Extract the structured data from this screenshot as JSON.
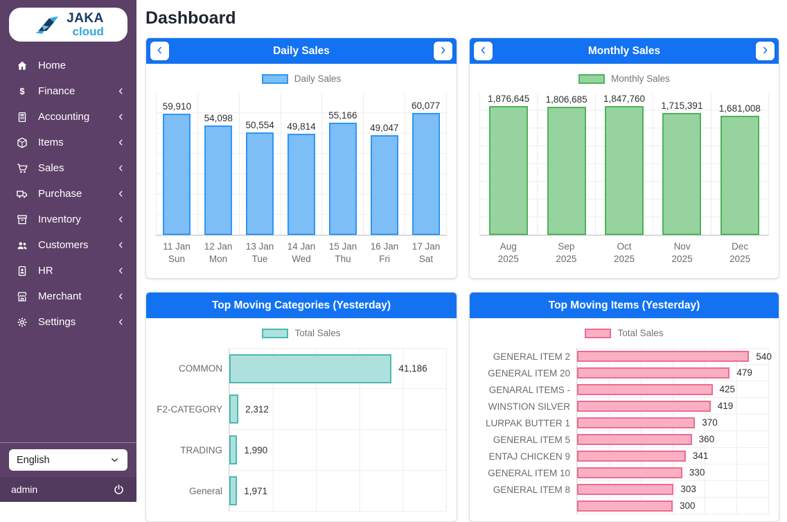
{
  "brand": {
    "top": "JAKA",
    "bottom": "cloud"
  },
  "page_title": "Dashboard",
  "colors": {
    "accent_blue": "#1272f2",
    "sidebar_purple": "#5c4067",
    "sidebar_footer": "#523a5f"
  },
  "sidebar": {
    "items": [
      {
        "label": "Home",
        "icon": "home-icon",
        "chevron": false
      },
      {
        "label": "Finance",
        "icon": "dollar-icon",
        "chevron": true
      },
      {
        "label": "Accounting",
        "icon": "calculator-icon",
        "chevron": true
      },
      {
        "label": "Items",
        "icon": "cube-icon",
        "chevron": true
      },
      {
        "label": "Sales",
        "icon": "cart-icon",
        "chevron": true
      },
      {
        "label": "Purchase",
        "icon": "truck-icon",
        "chevron": true
      },
      {
        "label": "Inventory",
        "icon": "archive-icon",
        "chevron": true
      },
      {
        "label": "Customers",
        "icon": "users-icon",
        "chevron": true
      },
      {
        "label": "HR",
        "icon": "id-card-icon",
        "chevron": true
      },
      {
        "label": "Merchant",
        "icon": "store-icon",
        "chevron": true
      },
      {
        "label": "Settings",
        "icon": "gear-icon",
        "chevron": true
      }
    ],
    "language": "English",
    "user": "admin"
  },
  "chart_data": [
    {
      "id": "daily-sales",
      "type": "bar",
      "title": "Daily Sales",
      "legend": "Daily Sales",
      "has_nav_arrows": true,
      "legend_position": "top",
      "grid": true,
      "categories": [
        [
          "11 Jan",
          "Sun"
        ],
        [
          "12 Jan",
          "Mon"
        ],
        [
          "13 Jan",
          "Tue"
        ],
        [
          "14 Jan",
          "Wed"
        ],
        [
          "15 Jan",
          "Thu"
        ],
        [
          "16 Jan",
          "Fri"
        ],
        [
          "17 Jan",
          "Sat"
        ]
      ],
      "values": [
        59910,
        54098,
        50554,
        49814,
        55166,
        49047,
        60077
      ],
      "value_labels": [
        "59,910",
        "54,098",
        "50,554",
        "49,814",
        "55,166",
        "49,047",
        "60,077"
      ],
      "ylim": [
        0,
        70000
      ],
      "grid_step": 10000,
      "colors": {
        "fill": "#7dbef7",
        "border": "#2e96f4"
      }
    },
    {
      "id": "monthly-sales",
      "type": "bar",
      "title": "Monthly Sales",
      "legend": "Monthly Sales",
      "has_nav_arrows": true,
      "legend_position": "top",
      "grid": true,
      "categories": [
        [
          "Aug",
          "2025"
        ],
        [
          "Sep",
          "2025"
        ],
        [
          "Oct",
          "2025"
        ],
        [
          "Nov",
          "2025"
        ],
        [
          "Dec",
          "2025"
        ]
      ],
      "values": [
        1876645,
        1806685,
        1847760,
        1715391,
        1681008
      ],
      "value_labels": [
        "1,876,645",
        "1,806,685",
        "1,847,760",
        "1,715,391",
        "1,681,008"
      ],
      "ylim": [
        0,
        2000000
      ],
      "grid_step": 250000,
      "colors": {
        "fill": "#97d39e",
        "border": "#4db35b"
      }
    },
    {
      "id": "top-moving-categories",
      "type": "hbar",
      "title": "Top Moving Categories (Yesterday)",
      "legend": "Total Sales",
      "has_nav_arrows": false,
      "legend_position": "top",
      "grid": true,
      "categories": [
        "COMMON",
        "F2-CATEGORY",
        "TRADING",
        "General"
      ],
      "values": [
        41186,
        2312,
        1990,
        1971
      ],
      "value_labels": [
        "41,186",
        "2,312",
        "1,990",
        "1,971"
      ],
      "xlim": [
        0,
        55000
      ],
      "colors": {
        "fill": "#aee1dd",
        "border": "#4cb8b0"
      }
    },
    {
      "id": "top-moving-items",
      "type": "hbar",
      "title": "Top Moving Items (Yesterday)",
      "legend": "Total Sales",
      "has_nav_arrows": false,
      "legend_position": "top",
      "grid": true,
      "categories": [
        "GENERAL ITEM 2",
        "GENERAL ITEM 20",
        "GENARAL ITEMS -",
        "WINSTION SILVER",
        "LURPAK BUTTER 1",
        "GENERAL ITEM 5",
        "ENTAJ CHICKEN 9",
        "GENERAL ITEM 10",
        "GENERAL ITEM 8",
        ""
      ],
      "values": [
        540,
        479,
        425,
        419,
        370,
        360,
        341,
        330,
        303,
        300
      ],
      "value_labels": [
        "540",
        "479",
        "425",
        "419",
        "370",
        "360",
        "341",
        "330",
        "303",
        "300"
      ],
      "xlim": [
        0,
        600
      ],
      "colors": {
        "fill": "#f9b0c3",
        "border": "#f06a93"
      }
    }
  ]
}
